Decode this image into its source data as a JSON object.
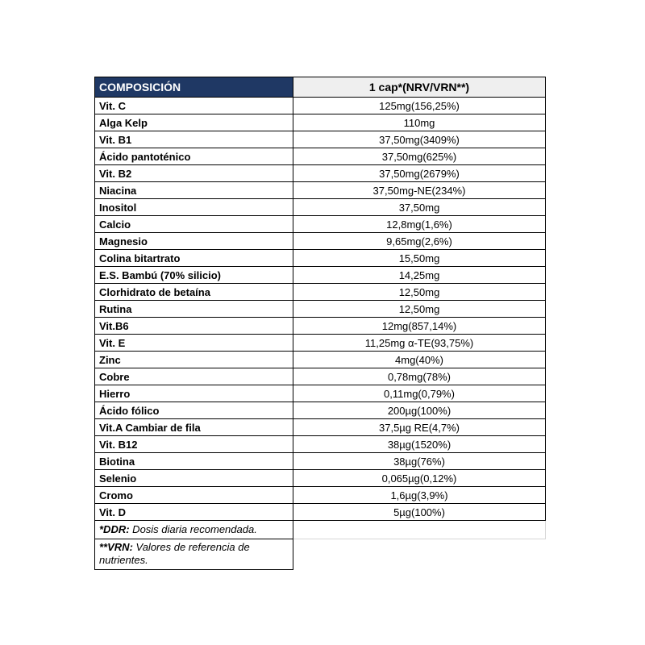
{
  "table": {
    "header": {
      "left": "COMPOSICIÓN",
      "right": "1 cap*(NRV/VRN**)"
    },
    "rows": [
      {
        "label": "Vit. C",
        "value": "125mg(156,25%)"
      },
      {
        "label": "Alga Kelp",
        "value": "110mg"
      },
      {
        "label": "Vit. B1",
        "value": "37,50mg(3409%)"
      },
      {
        "label": "Ácido pantoténico",
        "value": "37,50mg(625%)"
      },
      {
        "label": "Vit. B2",
        "value": "37,50mg(2679%)"
      },
      {
        "label": "Niacina",
        "value": "37,50mg-NE(234%)"
      },
      {
        "label": "Inositol",
        "value": "37,50mg"
      },
      {
        "label": "Calcio",
        "value": "12,8mg(1,6%)"
      },
      {
        "label": "Magnesio",
        "value": "9,65mg(2,6%)"
      },
      {
        "label": "Colina bitartrato",
        "value": "15,50mg"
      },
      {
        "label": "E.S. Bambú (70% silicio)",
        "value": "14,25mg"
      },
      {
        "label": "Clorhidrato de betaína",
        "value": "12,50mg"
      },
      {
        "label": "Rutina",
        "value": "12,50mg"
      },
      {
        "label": "Vit.B6",
        "value": "12mg(857,14%)"
      },
      {
        "label": "Vit. E",
        "value": "11,25mg α-TE(93,75%)"
      },
      {
        "label": "Zinc",
        "value": "4mg(40%)"
      },
      {
        "label": "Cobre",
        "value": "0,78mg(78%)"
      },
      {
        "label": "Hierro",
        "value": "0,11mg(0,79%)"
      },
      {
        "label": "Ácido fólico",
        "value": "200µg(100%)"
      },
      {
        "label": "Vit.A Cambiar de fila",
        "value": "37,5µg RE(4,7%)"
      },
      {
        "label": "Vit. B12",
        "value": "38µg(1520%)"
      },
      {
        "label": "Biotina",
        "value": "38µg(76%)"
      },
      {
        "label": "Selenio",
        "value": "0,065µg(0,12%)"
      },
      {
        "label": "Cromo",
        "value": "1,6µg(3,9%)"
      },
      {
        "label": "Vit. D",
        "value": "5µg(100%)"
      }
    ],
    "footnotes": [
      {
        "prefix": "*DDR:",
        "text": " Dosis diaria recomendada."
      },
      {
        "prefix": "**VRN:",
        "text": " Valores de referencia de nutrientes."
      }
    ]
  },
  "colors": {
    "header_bg": "#1f3864",
    "header_right_bg": "#efefef",
    "border_color": "#000000",
    "footnote_border": "#d6d6d6"
  }
}
